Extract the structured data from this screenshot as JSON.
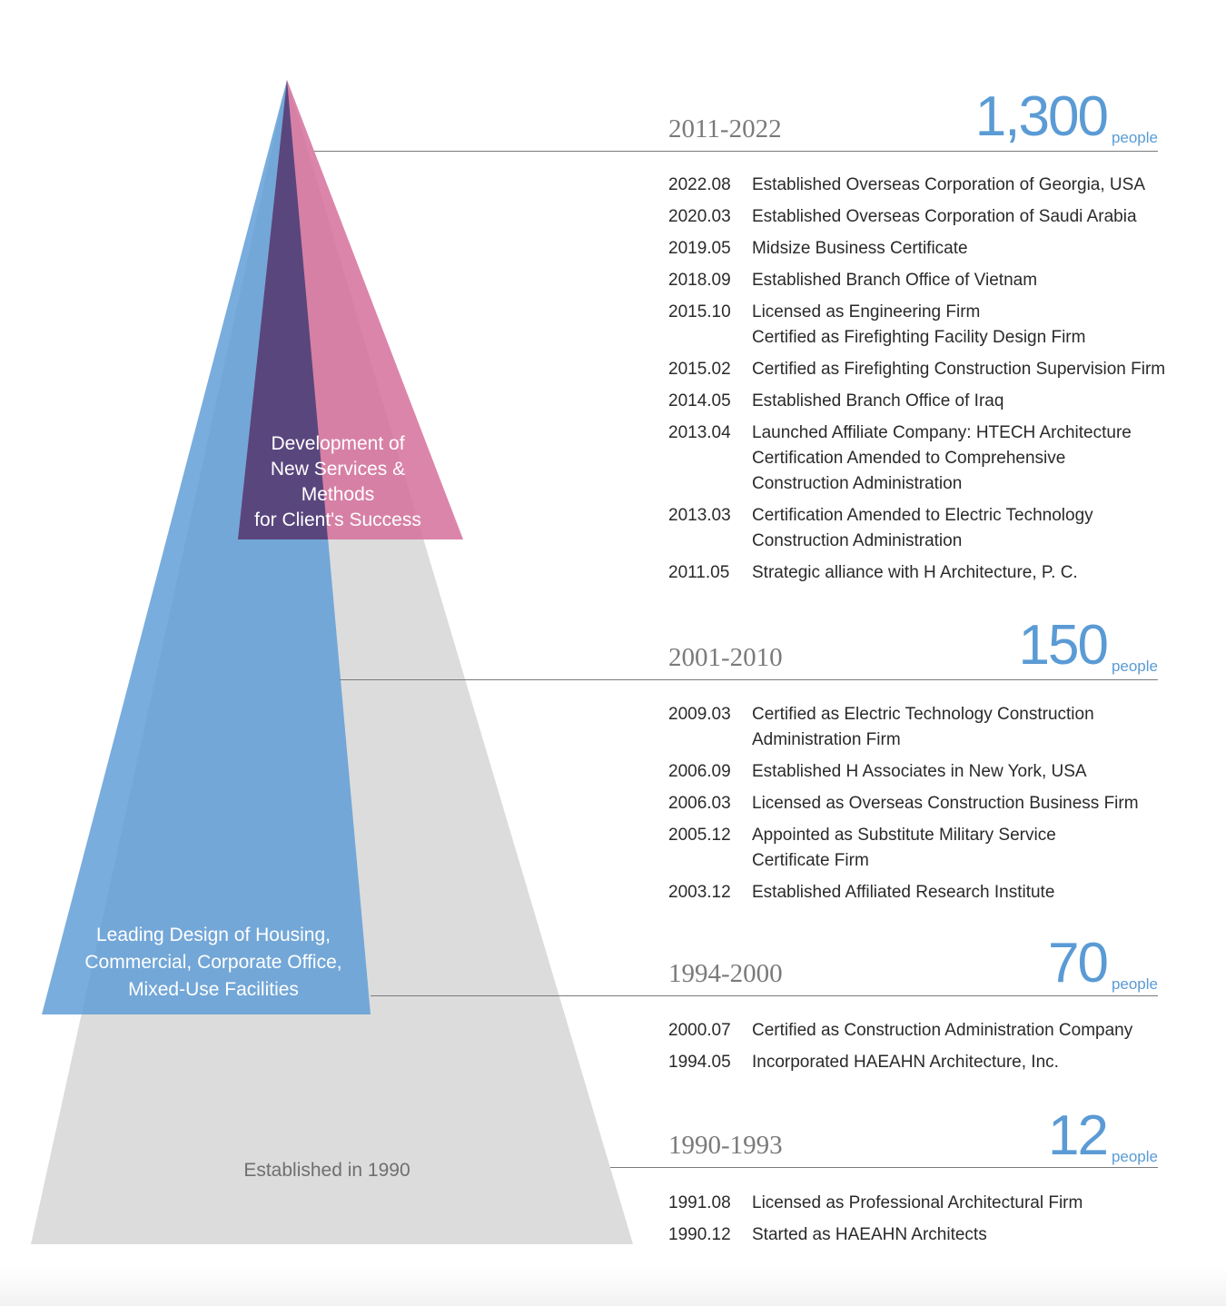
{
  "pyramid": {
    "colors": {
      "base": "#dcdcdc",
      "blue": "#5b9bd5",
      "pink": "#d6709b",
      "purple": "#4a3f78"
    },
    "top_label": "Development of\nNew Services &\nMethods\nfor Client's Success",
    "middle_label": "Leading Design of Housing,\nCommercial, Corporate Office,\nMixed-Use Facilities",
    "base_label": "Established in 1990"
  },
  "timeline": [
    {
      "period": "2011-2022",
      "headcount": "1,300",
      "unit": "people",
      "events": [
        {
          "date": "2022.08",
          "text": "Established Overseas Corporation of Georgia, USA"
        },
        {
          "date": "2020.03",
          "text": "Established Overseas Corporation of Saudi Arabia"
        },
        {
          "date": "2019.05",
          "text": "Midsize Business Certificate"
        },
        {
          "date": "2018.09",
          "text": "Established Branch Office of Vietnam"
        },
        {
          "date": "2015.10",
          "text": "Licensed as Engineering Firm\nCertified as Firefighting Facility Design Firm"
        },
        {
          "date": "2015.02",
          "text": "Certified as Firefighting Construction Supervision Firm"
        },
        {
          "date": "2014.05",
          "text": "Established Branch Office of Iraq"
        },
        {
          "date": "2013.04",
          "text": "Launched Affiliate Company: HTECH Architecture\nCertification Amended to Comprehensive\nConstruction Administration"
        },
        {
          "date": "2013.03",
          "text": "Certification Amended to Electric Technology\nConstruction Administration"
        },
        {
          "date": "2011.05",
          "text": "Strategic alliance with H Architecture, P. C."
        }
      ]
    },
    {
      "period": "2001-2010",
      "headcount": "150",
      "unit": "people",
      "events": [
        {
          "date": "2009.03",
          "text": "Certified as Electric Technology Construction\nAdministration Firm"
        },
        {
          "date": "2006.09",
          "text": "Established H Associates in New York, USA"
        },
        {
          "date": "2006.03",
          "text": "Licensed as Overseas Construction Business Firm"
        },
        {
          "date": "2005.12",
          "text": "Appointed as Substitute Military Service\nCertificate Firm"
        },
        {
          "date": "2003.12",
          "text": "Established Affiliated Research Institute"
        }
      ]
    },
    {
      "period": "1994-2000",
      "headcount": "70",
      "unit": "people",
      "events": [
        {
          "date": "2000.07",
          "text": "Certified as Construction Administration Company"
        },
        {
          "date": "1994.05",
          "text": "Incorporated HAEAHN Architecture, Inc."
        }
      ]
    },
    {
      "period": "1990-1993",
      "headcount": "12",
      "unit": "people",
      "events": [
        {
          "date": "1991.08",
          "text": "Licensed as Professional Architectural Firm"
        },
        {
          "date": "1990.12",
          "text": "Started as HAEAHN Architects"
        }
      ]
    }
  ]
}
